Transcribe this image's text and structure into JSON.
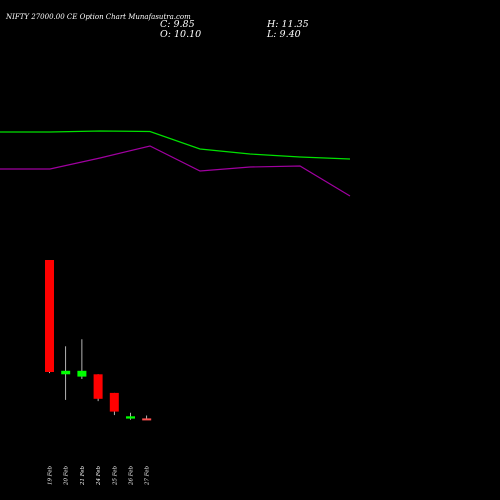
{
  "header": {
    "title": "NIFTY 27000.00  CE Option  Chart Munafasutra.com",
    "close": "C: 9.85",
    "high": "H: 11.35",
    "open": "O: 10.10",
    "low": "L: 9.40"
  },
  "colors": {
    "background": "#000000",
    "up": "#00ff00",
    "down": "#ff0000",
    "wick": "#ffffff",
    "ma_green": "#00e000",
    "ma_purple": "#a000a0",
    "last_doji": "#ff5050"
  },
  "chart_data": {
    "type": "candlestick",
    "categories": [
      "19 Feb",
      "20 Feb",
      "21 Feb",
      "24 Feb",
      "25 Feb",
      "26 Feb",
      "27 Feb"
    ],
    "candles": [
      {
        "date": "19 Feb",
        "open": 78.0,
        "high": 78.0,
        "low": 29.5,
        "close": 30.0
      },
      {
        "date": "20 Feb",
        "open": 29.0,
        "high": 41.0,
        "low": 18.0,
        "close": 30.5
      },
      {
        "date": "21 Feb",
        "open": 28.0,
        "high": 44.0,
        "low": 27.0,
        "close": 30.5
      },
      {
        "date": "24 Feb",
        "open": 29.0,
        "high": 29.0,
        "low": 17.5,
        "close": 18.5
      },
      {
        "date": "25 Feb",
        "open": 21.0,
        "high": 21.0,
        "low": 11.5,
        "close": 13.0
      },
      {
        "date": "26 Feb",
        "open": 10.0,
        "high": 12.5,
        "low": 9.5,
        "close": 11.0
      },
      {
        "date": "27 Feb",
        "open": 10.1,
        "high": 11.35,
        "low": 9.4,
        "close": 9.85
      }
    ],
    "ma_green": [
      230,
      230,
      231,
      230.5,
      213,
      208,
      205,
      203
    ],
    "ma_purple": [
      193,
      193,
      204,
      216,
      191,
      195,
      196,
      166
    ]
  }
}
